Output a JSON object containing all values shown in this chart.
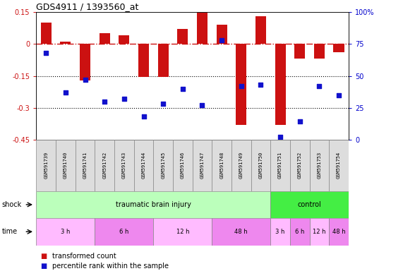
{
  "title": "GDS4911 / 1393560_at",
  "samples": [
    "GSM591739",
    "GSM591740",
    "GSM591741",
    "GSM591742",
    "GSM591743",
    "GSM591744",
    "GSM591745",
    "GSM591746",
    "GSM591747",
    "GSM591748",
    "GSM591749",
    "GSM591750",
    "GSM591751",
    "GSM591752",
    "GSM591753",
    "GSM591754"
  ],
  "bar_values": [
    0.1,
    0.01,
    -0.17,
    0.05,
    0.04,
    -0.155,
    -0.155,
    0.07,
    0.148,
    0.09,
    -0.38,
    0.13,
    -0.38,
    -0.07,
    -0.07,
    -0.04
  ],
  "dot_values": [
    68,
    37,
    47,
    30,
    32,
    18,
    28,
    40,
    27,
    78,
    42,
    43,
    2,
    14,
    42,
    35
  ],
  "ylim_left": [
    -0.45,
    0.15
  ],
  "ylim_right": [
    0,
    100
  ],
  "yticks_left": [
    0.15,
    0.0,
    -0.15,
    -0.3,
    -0.45
  ],
  "yticks_right": [
    100,
    75,
    50,
    25,
    0
  ],
  "hline_y": 0.0,
  "dotted_lines": [
    -0.15,
    -0.3
  ],
  "bar_color": "#cc1111",
  "dot_color": "#1111cc",
  "hline_color": "#cc1111",
  "shock_groups": [
    {
      "label": "traumatic brain injury",
      "start": 0,
      "end": 12,
      "color": "#bbffbb"
    },
    {
      "label": "control",
      "start": 12,
      "end": 16,
      "color": "#44ee44"
    }
  ],
  "time_groups": [
    {
      "label": "3 h",
      "start": 0,
      "end": 3,
      "color": "#ffbbff"
    },
    {
      "label": "6 h",
      "start": 3,
      "end": 6,
      "color": "#ee88ee"
    },
    {
      "label": "12 h",
      "start": 6,
      "end": 9,
      "color": "#ffbbff"
    },
    {
      "label": "48 h",
      "start": 9,
      "end": 12,
      "color": "#ee88ee"
    },
    {
      "label": "3 h",
      "start": 12,
      "end": 13,
      "color": "#ffbbff"
    },
    {
      "label": "6 h",
      "start": 13,
      "end": 14,
      "color": "#ee88ee"
    },
    {
      "label": "12 h",
      "start": 14,
      "end": 15,
      "color": "#ffbbff"
    },
    {
      "label": "48 h",
      "start": 15,
      "end": 16,
      "color": "#ee88ee"
    }
  ],
  "legend_bar_label": "transformed count",
  "legend_dot_label": "percentile rank within the sample",
  "shock_label": "shock",
  "time_label": "time",
  "bg_color": "#ffffff"
}
